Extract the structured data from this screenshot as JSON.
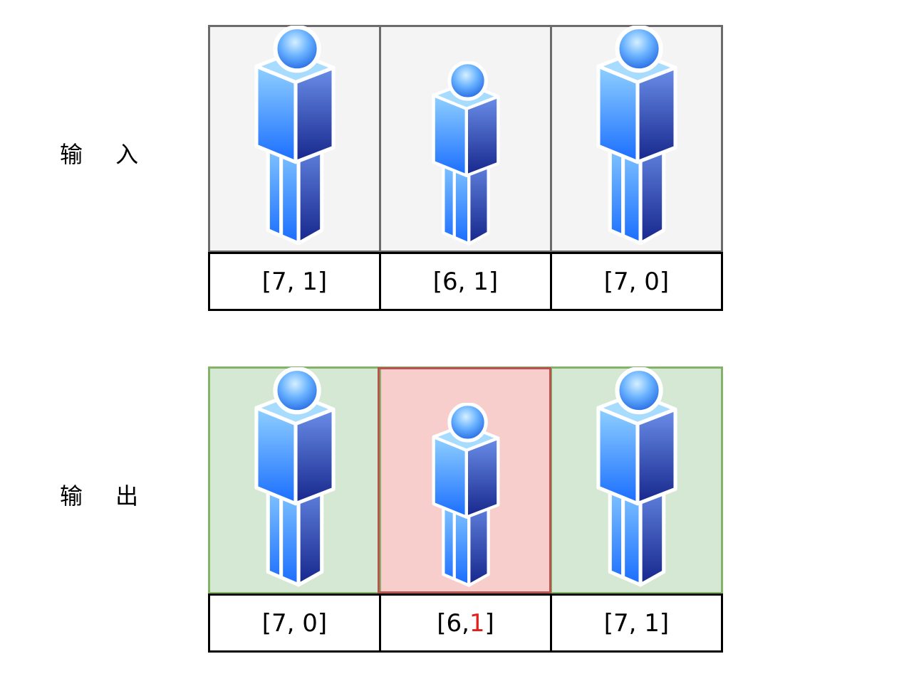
{
  "rows": {
    "input": {
      "label": "输 入",
      "cells": [
        {
          "size": "tall",
          "text": "[7, 1]"
        },
        {
          "size": "short",
          "text": "[6, 1]"
        },
        {
          "size": "tall",
          "text": "[7, 0]"
        }
      ]
    },
    "output": {
      "label": "输 出",
      "cells": [
        {
          "size": "tall",
          "text": "[7, 0]"
        },
        {
          "size": "short",
          "prefix": "[6, ",
          "accent": "1",
          "suffix": "]",
          "highlighted": true
        },
        {
          "size": "tall",
          "text": "[7, 1]"
        }
      ]
    }
  },
  "colors": {
    "input_frame": "#6b6b6b",
    "input_fill": "#f4f4f4",
    "output_frame": "#82b366",
    "output_fill": "#d5e8d4",
    "highlight_frame": "#b85450",
    "highlight_fill": "#f8cecc",
    "accent_text": "#e0201a",
    "person_light": "#8cc7ff",
    "person_dark": "#1f3aa8"
  }
}
